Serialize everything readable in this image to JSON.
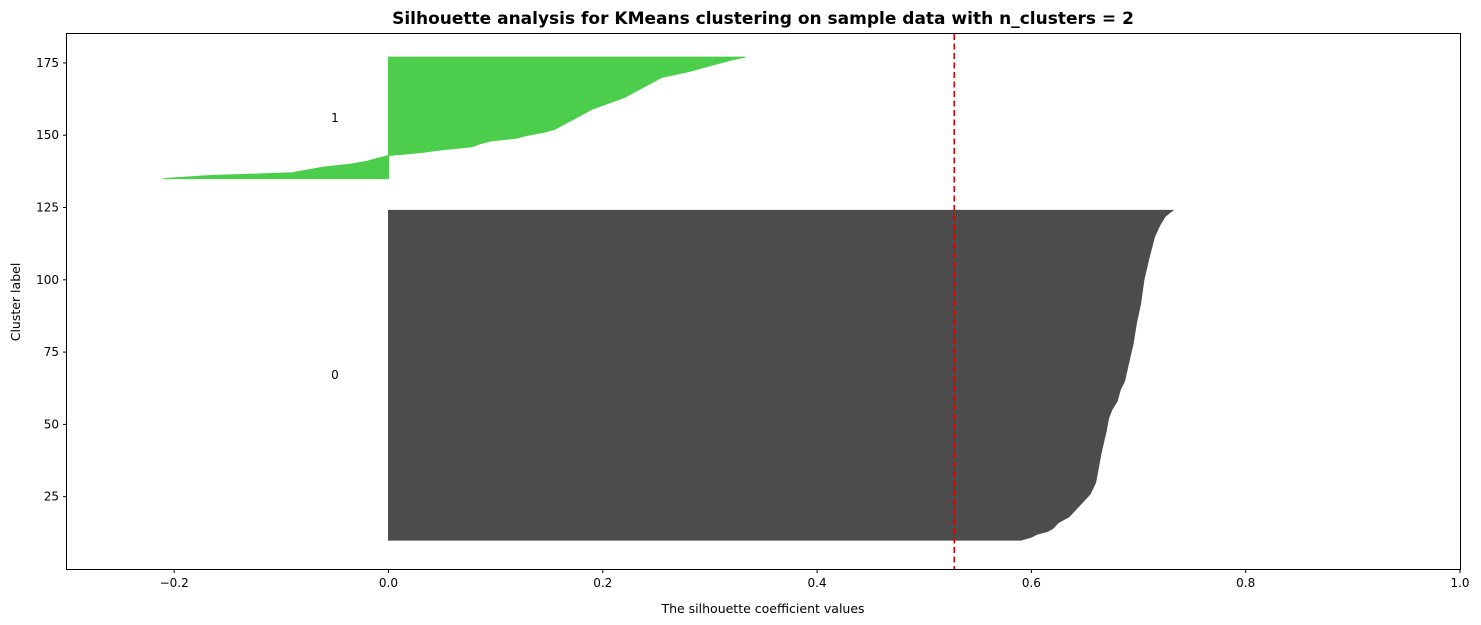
{
  "chart_data": {
    "type": "area",
    "title": "Silhouette analysis for KMeans clustering on sample data with n_clusters = 2",
    "xlabel": "The silhouette coefficient values",
    "ylabel": "Cluster label",
    "xlim": [
      -0.3,
      1.0
    ],
    "ylim": [
      0,
      185
    ],
    "xticks": [
      -0.2,
      0.0,
      0.2,
      0.4,
      0.6,
      0.8,
      1.0
    ],
    "xtick_labels": [
      "−0.2",
      "0.0",
      "0.2",
      "0.4",
      "0.6",
      "0.8",
      "1.0"
    ],
    "yticks": [
      25,
      50,
      75,
      100,
      125,
      150,
      175
    ],
    "ytick_labels": [
      "25",
      "50",
      "75",
      "100",
      "125",
      "150",
      "175"
    ],
    "average_silhouette": 0.528,
    "grid": false,
    "clusters": [
      {
        "label": "0",
        "color": "#4c4c4c",
        "y_range": [
          10,
          124
        ],
        "label_position": {
          "x": -0.05,
          "y": 67
        },
        "profile": [
          [
            10,
            0.59
          ],
          [
            11,
            0.6
          ],
          [
            12,
            0.605
          ],
          [
            13,
            0.615
          ],
          [
            14,
            0.62
          ],
          [
            16,
            0.625
          ],
          [
            18,
            0.635
          ],
          [
            20,
            0.64
          ],
          [
            22,
            0.645
          ],
          [
            24,
            0.65
          ],
          [
            26,
            0.655
          ],
          [
            30,
            0.66
          ],
          [
            40,
            0.665
          ],
          [
            48,
            0.67
          ],
          [
            52,
            0.672
          ],
          [
            55,
            0.675
          ],
          [
            58,
            0.68
          ],
          [
            62,
            0.683
          ],
          [
            65,
            0.687
          ],
          [
            70,
            0.69
          ],
          [
            78,
            0.695
          ],
          [
            85,
            0.698
          ],
          [
            92,
            0.702
          ],
          [
            100,
            0.705
          ],
          [
            108,
            0.71
          ],
          [
            115,
            0.715
          ],
          [
            119,
            0.72
          ],
          [
            122,
            0.725
          ],
          [
            124,
            0.732
          ]
        ]
      },
      {
        "label": "1",
        "color": "#4ccd4c",
        "y_range": [
          135,
          177
        ],
        "label_position": {
          "x": -0.05,
          "y": 156
        },
        "profile": [
          [
            135,
            -0.21
          ],
          [
            136,
            -0.17
          ],
          [
            137,
            -0.09
          ],
          [
            138,
            -0.075
          ],
          [
            139,
            -0.06
          ],
          [
            140,
            -0.035
          ],
          [
            141,
            -0.02
          ],
          [
            142,
            -0.01
          ],
          [
            143,
            0.0
          ],
          [
            144,
            0.03
          ],
          [
            145,
            0.05
          ],
          [
            146,
            0.078
          ],
          [
            147,
            0.085
          ],
          [
            148,
            0.095
          ],
          [
            149,
            0.12
          ],
          [
            150,
            0.13
          ],
          [
            151,
            0.145
          ],
          [
            152,
            0.155
          ],
          [
            154,
            0.165
          ],
          [
            155,
            0.17
          ],
          [
            157,
            0.18
          ],
          [
            159,
            0.19
          ],
          [
            161,
            0.205
          ],
          [
            163,
            0.22
          ],
          [
            165,
            0.23
          ],
          [
            167,
            0.24
          ],
          [
            170,
            0.255
          ],
          [
            172,
            0.28
          ],
          [
            174,
            0.3
          ],
          [
            175,
            0.31
          ],
          [
            176,
            0.32
          ],
          [
            177,
            0.333
          ]
        ]
      }
    ]
  }
}
